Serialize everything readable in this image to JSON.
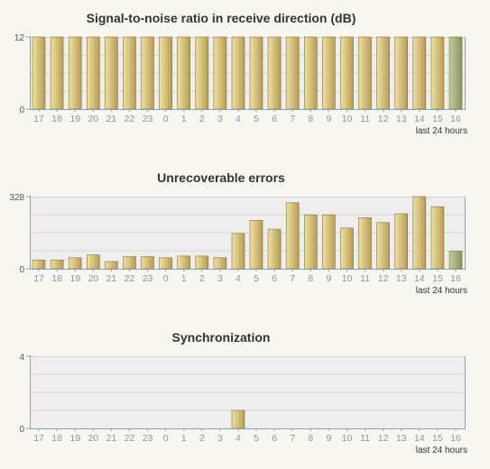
{
  "colors": {
    "plot_bg": "#eeeeee",
    "grid": "#d4d4d4",
    "axis": "#8fa2b0",
    "tick_label": "#8a96a8",
    "bar_gold_light": "#efe2a1",
    "bar_gold_dark": "#b89c55",
    "bar_green_light": "#c3cf98",
    "bar_green_dark": "#809565",
    "bar_stroke": "#8a6f3e"
  },
  "chart_data": [
    {
      "type": "bar",
      "title": "Signal-to-noise ratio in receive direction (dB)",
      "categories": [
        "17",
        "18",
        "19",
        "20",
        "21",
        "22",
        "23",
        "0",
        "1",
        "2",
        "3",
        "4",
        "5",
        "6",
        "7",
        "8",
        "9",
        "10",
        "11",
        "12",
        "13",
        "14",
        "15",
        "16"
      ],
      "values": [
        12,
        12,
        12,
        12,
        12,
        12,
        12,
        12,
        12,
        12,
        12,
        12,
        12,
        12,
        12,
        12,
        12,
        12,
        12,
        12,
        12,
        12,
        12,
        12
      ],
      "highlight_last": true,
      "ylim": [
        0,
        12
      ],
      "yticks": [
        0,
        12
      ],
      "grid": true,
      "footnote": "last 24 hours"
    },
    {
      "type": "bar",
      "title": "Unrecoverable errors",
      "categories": [
        "17",
        "18",
        "19",
        "20",
        "21",
        "22",
        "23",
        "0",
        "1",
        "2",
        "3",
        "4",
        "5",
        "6",
        "7",
        "8",
        "9",
        "10",
        "11",
        "12",
        "13",
        "14",
        "15",
        "16"
      ],
      "values": [
        40,
        40,
        50,
        63,
        33,
        55,
        55,
        50,
        58,
        58,
        50,
        160,
        220,
        180,
        300,
        245,
        245,
        185,
        232,
        210,
        250,
        328,
        282,
        80
      ],
      "highlight_last": true,
      "ylim": [
        0,
        328
      ],
      "yticks": [
        0,
        328
      ],
      "grid": true,
      "footnote": "last 24 hours"
    },
    {
      "type": "bar",
      "title": "Synchronization",
      "categories": [
        "17",
        "18",
        "19",
        "20",
        "21",
        "22",
        "23",
        "0",
        "1",
        "2",
        "3",
        "4",
        "5",
        "6",
        "7",
        "8",
        "9",
        "10",
        "11",
        "12",
        "13",
        "14",
        "15",
        "16"
      ],
      "values": [
        0,
        0,
        0,
        0,
        0,
        0,
        0,
        0,
        0,
        0,
        0,
        1,
        0,
        0,
        0,
        0,
        0,
        0,
        0,
        0,
        0,
        0,
        0,
        0
      ],
      "highlight_last": false,
      "ylim": [
        0,
        4
      ],
      "yticks": [
        0,
        4
      ],
      "grid": true,
      "footnote": "last 24 hours"
    }
  ]
}
